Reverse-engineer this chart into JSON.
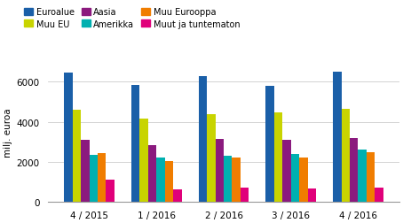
{
  "ylabel": "milj. euroa",
  "categories": [
    "4 / 2015",
    "1 / 2016",
    "2 / 2016",
    "3 / 2016",
    "4 / 2016"
  ],
  "series": {
    "Euroalue": [
      6450,
      5850,
      6300,
      5800,
      6500
    ],
    "Muu EU": [
      4600,
      4150,
      4400,
      4450,
      4650
    ],
    "Aasia": [
      3100,
      2850,
      3150,
      3100,
      3200
    ],
    "Amerikka": [
      2350,
      2200,
      2300,
      2380,
      2600
    ],
    "Muu Eurooppa": [
      2450,
      2050,
      2220,
      2220,
      2470
    ],
    "Muut ja tuntematon": [
      1100,
      630,
      720,
      650,
      720
    ]
  },
  "colors": {
    "Euroalue": "#1a5fa8",
    "Muu EU": "#c8d400",
    "Aasia": "#8b1a7e",
    "Amerikka": "#00b0b0",
    "Muu Eurooppa": "#f07d00",
    "Muut ja tuntematon": "#e0007a"
  },
  "legend_order": [
    "Euroalue",
    "Muu EU",
    "Aasia",
    "Amerikka",
    "Muu Eurooppa",
    "Muut ja tuntematon"
  ],
  "ylim": [
    0,
    7000
  ],
  "yticks": [
    0,
    2000,
    4000,
    6000
  ],
  "background_color": "#ffffff"
}
